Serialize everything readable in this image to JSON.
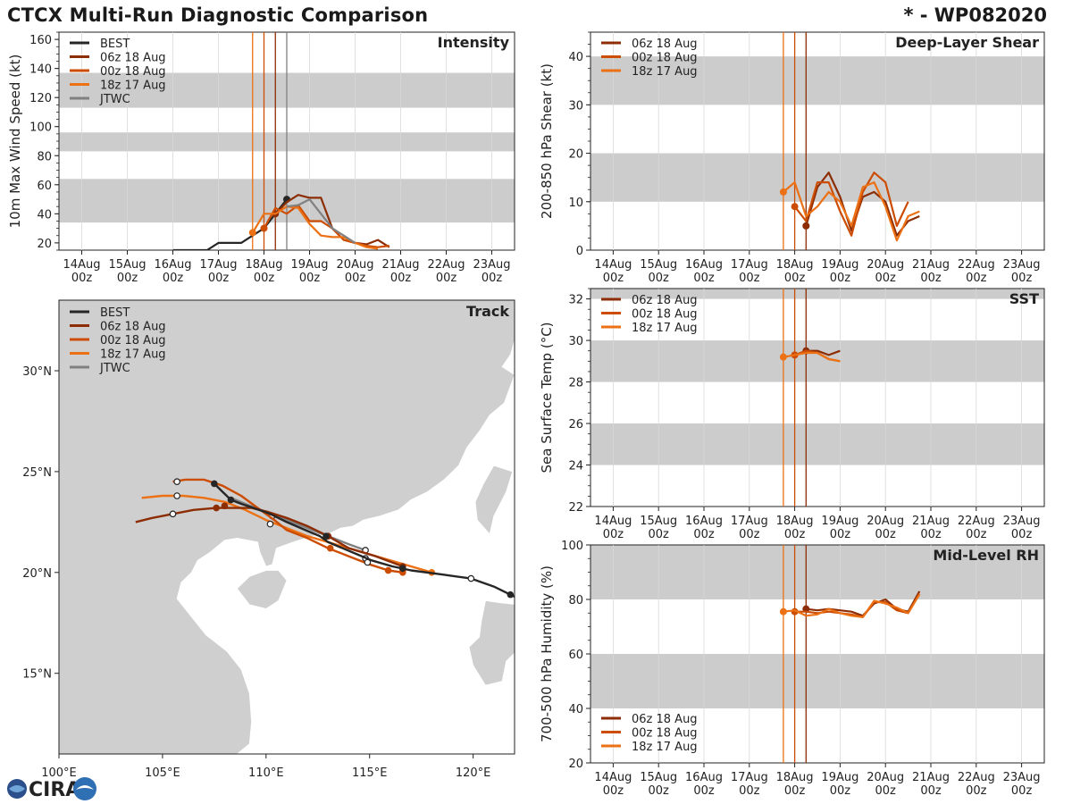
{
  "header": {
    "title": "CTCX Multi-Run Diagnostic Comparison",
    "storm_id": "* - WP082020"
  },
  "colors": {
    "best": "#262626",
    "run_06z": "#8c2d04",
    "run_00z": "#cc4c02",
    "run_18z": "#ec7014",
    "jtwc": "#808080",
    "band": "#cccccc",
    "land": "#cfcfcf"
  },
  "logo": {
    "text": "CIRA"
  },
  "chart_data": [
    {
      "id": "intensity",
      "type": "line",
      "title": "Intensity",
      "ylabel": "10m Max Wind Speed (kt)",
      "xlabel": "",
      "ylim": [
        15,
        165
      ],
      "yticks": [
        20,
        40,
        60,
        80,
        100,
        120,
        140,
        160
      ],
      "xlim": [
        -0.5,
        9.5
      ],
      "xtick_labels": [
        "14Aug\n00z",
        "15Aug\n00z",
        "16Aug\n00z",
        "17Aug\n00z",
        "18Aug\n00z",
        "19Aug\n00z",
        "20Aug\n00z",
        "21Aug\n00z",
        "22Aug\n00z",
        "23Aug\n00z"
      ],
      "bands": [
        [
          34,
          64
        ],
        [
          83,
          96
        ],
        [
          113,
          137
        ]
      ],
      "vlines": [
        {
          "x": 3.75,
          "series": "18z 17 Aug"
        },
        {
          "x": 4.0,
          "series": "00z 18 Aug"
        },
        {
          "x": 4.25,
          "series": "06z 18 Aug"
        },
        {
          "x": 4.5,
          "series": "JTWC"
        }
      ],
      "legend_position": "top-left",
      "series": [
        {
          "name": "BEST",
          "color_key": "best",
          "x": [
            2.0,
            2.25,
            2.5,
            2.75,
            3.0,
            3.25,
            3.5,
            3.75,
            4.0,
            4.25,
            4.5
          ],
          "y": [
            15,
            15,
            15,
            15,
            20,
            20,
            20,
            25,
            30,
            40,
            50
          ],
          "markers_x": [
            4.5
          ]
        },
        {
          "name": "06z 18 Aug",
          "color_key": "run_06z",
          "x": [
            4.25,
            4.5,
            4.75,
            5.0,
            5.25,
            5.5,
            5.75,
            6.0,
            6.25,
            6.5,
            6.75
          ],
          "y": [
            40,
            48,
            53,
            51,
            51,
            30,
            22,
            20,
            19,
            22,
            17
          ],
          "markers_x": [
            4.25
          ]
        },
        {
          "name": "00z 18 Aug",
          "color_key": "run_00z",
          "x": [
            4.0,
            4.25,
            4.5,
            4.75,
            5.0,
            5.25,
            5.5,
            5.75,
            6.0,
            6.25,
            6.5,
            6.75
          ],
          "y": [
            30,
            44,
            40,
            46,
            35,
            35,
            30,
            22,
            20,
            18,
            17,
            18
          ],
          "markers_x": [
            4.0
          ]
        },
        {
          "name": "18z 17 Aug",
          "color_key": "run_18z",
          "x": [
            3.75,
            4.0,
            4.25,
            4.5,
            4.75,
            5.0,
            5.25,
            5.5,
            5.75,
            6.0,
            6.25,
            6.5
          ],
          "y": [
            27,
            40,
            40,
            45,
            44,
            33,
            25,
            24,
            24,
            20,
            17,
            16
          ],
          "markers_x": [
            3.75
          ]
        },
        {
          "name": "JTWC",
          "color_key": "jtwc",
          "x": [
            4.5,
            4.75,
            5.0,
            5.25,
            5.5,
            5.75,
            6.0
          ],
          "y": [
            45,
            46,
            50,
            40,
            30,
            25,
            20
          ],
          "markers_x": []
        }
      ]
    },
    {
      "id": "shear",
      "type": "line",
      "title": "Deep-Layer Shear",
      "ylabel": "200-850 hPa Shear (kt)",
      "xlabel": "",
      "ylim": [
        0,
        45
      ],
      "yticks": [
        0,
        10,
        20,
        30,
        40
      ],
      "xlim": [
        -0.5,
        9.5
      ],
      "xtick_labels": [
        "14Aug\n00z",
        "15Aug\n00z",
        "16Aug\n00z",
        "17Aug\n00z",
        "18Aug\n00z",
        "19Aug\n00z",
        "20Aug\n00z",
        "21Aug\n00z",
        "22Aug\n00z",
        "23Aug\n00z"
      ],
      "bands": [
        [
          10,
          20
        ],
        [
          30,
          40
        ]
      ],
      "vlines": [
        {
          "x": 3.75,
          "series": "18z 17 Aug"
        },
        {
          "x": 4.0,
          "series": "00z 18 Aug"
        },
        {
          "x": 4.25,
          "series": "06z 18 Aug"
        }
      ],
      "legend_position": "top-left",
      "series": [
        {
          "name": "06z 18 Aug",
          "color_key": "run_06z",
          "x": [
            4.25,
            4.5,
            4.75,
            5.0,
            5.25,
            5.5,
            5.75,
            6.0,
            6.25,
            6.5,
            6.75
          ],
          "y": [
            5,
            13,
            16,
            11,
            4,
            11,
            12,
            10,
            3,
            6,
            7
          ],
          "markers_x": [
            4.25
          ]
        },
        {
          "name": "00z 18 Aug",
          "color_key": "run_00z",
          "x": [
            4.0,
            4.25,
            4.5,
            4.75,
            5.0,
            5.25,
            5.5,
            5.75,
            6.0,
            6.25,
            6.5
          ],
          "y": [
            9,
            6,
            14,
            14,
            8,
            3,
            12,
            16,
            14,
            5,
            10
          ],
          "markers_x": [
            4.0
          ]
        },
        {
          "name": "18z 17 Aug",
          "color_key": "run_18z",
          "x": [
            3.75,
            4.0,
            4.25,
            4.5,
            4.75,
            5.0,
            5.25,
            5.5,
            5.75,
            6.0,
            6.25,
            6.5,
            6.75
          ],
          "y": [
            12,
            14,
            7,
            9,
            12,
            10,
            5,
            13,
            14,
            9,
            2,
            7,
            8
          ],
          "markers_x": [
            3.75
          ]
        }
      ]
    },
    {
      "id": "sst",
      "type": "line",
      "title": "SST",
      "ylabel": "Sea Surface Temp (°C)",
      "xlabel": "",
      "ylim": [
        22,
        32.5
      ],
      "yticks": [
        22,
        24,
        26,
        28,
        30,
        32
      ],
      "xlim": [
        -0.5,
        9.5
      ],
      "xtick_labels": [
        "14Aug\n00z",
        "15Aug\n00z",
        "16Aug\n00z",
        "17Aug\n00z",
        "18Aug\n00z",
        "19Aug\n00z",
        "20Aug\n00z",
        "21Aug\n00z",
        "22Aug\n00z",
        "23Aug\n00z"
      ],
      "bands": [
        [
          24,
          26
        ],
        [
          28,
          30
        ],
        [
          32,
          32.5
        ]
      ],
      "vlines": [
        {
          "x": 3.75,
          "series": "18z 17 Aug"
        },
        {
          "x": 4.0,
          "series": "00z 18 Aug"
        },
        {
          "x": 4.25,
          "series": "06z 18 Aug"
        }
      ],
      "legend_position": "top-left",
      "series": [
        {
          "name": "06z 18 Aug",
          "color_key": "run_06z",
          "x": [
            4.25,
            4.5,
            4.75,
            5.0
          ],
          "y": [
            29.5,
            29.5,
            29.3,
            29.5
          ],
          "markers_x": [
            4.25
          ]
        },
        {
          "name": "00z 18 Aug",
          "color_key": "run_00z",
          "x": [
            4.0,
            4.25,
            4.5,
            4.75,
            5.0
          ],
          "y": [
            29.3,
            29.5,
            29.4,
            29.1,
            29.0
          ],
          "markers_x": [
            4.0
          ]
        },
        {
          "name": "18z 17 Aug",
          "color_key": "run_18z",
          "x": [
            3.75,
            4.0,
            4.25,
            4.5,
            4.75,
            5.0
          ],
          "y": [
            29.2,
            29.3,
            29.4,
            29.4,
            29.1,
            29.0
          ],
          "markers_x": [
            3.75
          ]
        }
      ]
    },
    {
      "id": "rh",
      "type": "line",
      "title": "Mid-Level RH",
      "ylabel": "700-500 hPa Humidity (%)",
      "xlabel": "",
      "ylim": [
        20,
        100
      ],
      "yticks": [
        20,
        40,
        60,
        80,
        100
      ],
      "xlim": [
        -0.5,
        9.5
      ],
      "xtick_labels": [
        "14Aug\n00z",
        "15Aug\n00z",
        "16Aug\n00z",
        "17Aug\n00z",
        "18Aug\n00z",
        "19Aug\n00z",
        "20Aug\n00z",
        "21Aug\n00z",
        "22Aug\n00z",
        "23Aug\n00z"
      ],
      "bands": [
        [
          40,
          60
        ],
        [
          80,
          100
        ]
      ],
      "vlines": [
        {
          "x": 3.75,
          "series": "18z 17 Aug"
        },
        {
          "x": 4.0,
          "series": "00z 18 Aug"
        },
        {
          "x": 4.25,
          "series": "06z 18 Aug"
        }
      ],
      "legend_position": "bottom-left",
      "series": [
        {
          "name": "06z 18 Aug",
          "color_key": "run_06z",
          "x": [
            4.25,
            4.5,
            4.75,
            5.0,
            5.25,
            5.5,
            5.75,
            6.0,
            6.25,
            6.5,
            6.75
          ],
          "y": [
            76.5,
            76,
            76.5,
            76,
            75.5,
            74,
            78.5,
            80,
            76.5,
            75.5,
            83
          ],
          "markers_x": [
            4.25
          ]
        },
        {
          "name": "00z 18 Aug",
          "color_key": "run_00z",
          "x": [
            4.0,
            4.25,
            4.5,
            4.75,
            5.0,
            5.25,
            5.5,
            5.75,
            6.0,
            6.25,
            6.5,
            6.75
          ],
          "y": [
            75.5,
            75.5,
            75,
            75.5,
            75,
            74.5,
            73.5,
            79,
            79,
            76,
            75,
            82
          ],
          "markers_x": [
            4.0
          ]
        },
        {
          "name": "18z 17 Aug",
          "color_key": "run_18z",
          "x": [
            3.75,
            4.0,
            4.25,
            4.5,
            4.75,
            5.0,
            5.25,
            5.5,
            5.75,
            6.0,
            6.25,
            6.5,
            6.75
          ],
          "y": [
            75.5,
            76,
            74,
            74.5,
            76.5,
            75,
            74,
            73.5,
            79.5,
            78.5,
            77,
            75,
            82
          ],
          "markers_x": [
            3.75
          ]
        }
      ]
    },
    {
      "id": "track",
      "type": "scatter",
      "title": "Track",
      "xlabel": "",
      "ylabel": "",
      "xlim": [
        100,
        122
      ],
      "ylim": [
        11,
        33.5
      ],
      "xticks": [
        100,
        105,
        110,
        115,
        120
      ],
      "xtick_labels": [
        "100°E",
        "105°E",
        "110°E",
        "115°E",
        "120°E"
      ],
      "yticks": [
        15,
        20,
        25,
        30
      ],
      "ytick_labels": [
        "15°N",
        "20°N",
        "25°N",
        "30°N"
      ],
      "legend_position": "top-left",
      "series": [
        {
          "name": "BEST",
          "color_key": "best",
          "lon": [
            122.0,
            121.0,
            119.9,
            118.5,
            117.0,
            116.1,
            115.1,
            114.4,
            113.7,
            113.0,
            112.6,
            111.9,
            111.0,
            110.2,
            109.4,
            108.8,
            108.3,
            107.9,
            107.5
          ],
          "lat": [
            18.8,
            19.3,
            19.7,
            19.9,
            20.1,
            20.3,
            20.6,
            20.9,
            21.2,
            21.5,
            21.8,
            22.1,
            22.5,
            22.9,
            23.2,
            23.4,
            23.6,
            24.0,
            24.4
          ],
          "filled_lon": [
            121.8,
            116.6,
            112.9,
            108.3,
            107.5
          ],
          "filled_lat": [
            18.9,
            20.2,
            21.8,
            23.6,
            24.4
          ],
          "open_lon": [
            119.9
          ],
          "open_lat": [
            19.7
          ]
        },
        {
          "name": "06z 18 Aug",
          "color_key": "run_06z",
          "lon": [
            116.6,
            115.3,
            114.0,
            113.0,
            112.0,
            111.0,
            110.1,
            109.3,
            108.5,
            107.6,
            106.5,
            105.5,
            104.5,
            103.7
          ],
          "lat": [
            20.3,
            20.8,
            21.2,
            21.8,
            22.3,
            22.7,
            23.0,
            23.2,
            23.2,
            23.2,
            23.1,
            22.9,
            22.7,
            22.5
          ],
          "filled_lon": [
            116.6,
            113.0,
            108.0,
            107.6
          ],
          "filled_lat": [
            20.3,
            21.8,
            23.3,
            23.2
          ],
          "open_lon": [
            105.5
          ],
          "open_lat": [
            22.9
          ]
        },
        {
          "name": "00z 18 Aug",
          "color_key": "run_00z",
          "lon": [
            116.6,
            115.9,
            115.0,
            114.0,
            113.0,
            112.0,
            111.0,
            110.4,
            109.6,
            108.8,
            107.9,
            107.0,
            106.1,
            105.5
          ],
          "lat": [
            20.0,
            20.1,
            20.4,
            20.8,
            21.2,
            21.7,
            22.1,
            22.6,
            23.2,
            23.8,
            24.3,
            24.6,
            24.6,
            24.5
          ],
          "filled_lon": [
            116.6,
            115.9,
            113.1
          ],
          "filled_lat": [
            20.0,
            20.1,
            21.2
          ],
          "open_lon": [
            114.9,
            110.2,
            105.7
          ],
          "open_lat": [
            20.5,
            22.4,
            24.5
          ]
        },
        {
          "name": "18z 17 Aug",
          "color_key": "run_18z",
          "lon": [
            118.0,
            117.0,
            116.0,
            115.0,
            114.0,
            113.0,
            112.0,
            111.0,
            110.0,
            109.0,
            108.0,
            107.0,
            106.0,
            105.0,
            104.0
          ],
          "lat": [
            20.0,
            20.3,
            20.6,
            20.9,
            21.2,
            21.5,
            21.8,
            22.2,
            22.6,
            23.1,
            23.5,
            23.7,
            23.8,
            23.8,
            23.7
          ],
          "filled_lon": [
            118.0,
            116.6
          ],
          "filled_lat": [
            20.0,
            20.1
          ],
          "open_lon": [
            114.8,
            110.3,
            105.7
          ],
          "open_lat": [
            20.7,
            22.8,
            23.8
          ]
        },
        {
          "name": "JTWC",
          "color_key": "jtwc",
          "lon": [
            114.8,
            114.0,
            113.0,
            112.0,
            111.0,
            110.0,
            109.0,
            108.3
          ],
          "lat": [
            21.1,
            21.4,
            21.8,
            22.2,
            22.6,
            23.0,
            23.4,
            23.7
          ],
          "filled_lon": [],
          "filled_lat": [],
          "open_lon": [
            114.8
          ],
          "open_lat": [
            21.1
          ]
        }
      ]
    }
  ]
}
